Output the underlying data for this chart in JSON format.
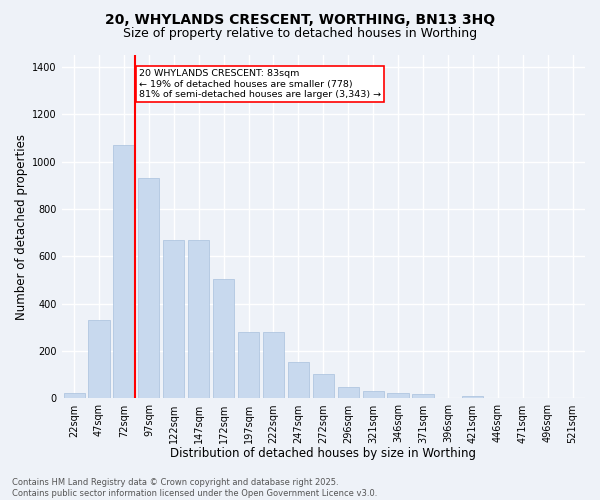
{
  "title_line1": "20, WHYLANDS CRESCENT, WORTHING, BN13 3HQ",
  "title_line2": "Size of property relative to detached houses in Worthing",
  "xlabel": "Distribution of detached houses by size in Worthing",
  "ylabel": "Number of detached properties",
  "bar_color": "#c8d9ee",
  "bar_edge_color": "#a8c0dd",
  "vline_color": "red",
  "vline_x": 2,
  "annotation_text": "20 WHYLANDS CRESCENT: 83sqm\n← 19% of detached houses are smaller (778)\n81% of semi-detached houses are larger (3,343) →",
  "annotation_box_color": "white",
  "annotation_box_edge_color": "red",
  "bin_labels": [
    "22sqm",
    "47sqm",
    "72sqm",
    "97sqm",
    "122sqm",
    "147sqm",
    "172sqm",
    "197sqm",
    "222sqm",
    "247sqm",
    "272sqm",
    "296sqm",
    "321sqm",
    "346sqm",
    "371sqm",
    "396sqm",
    "421sqm",
    "446sqm",
    "471sqm",
    "496sqm",
    "521sqm"
  ],
  "counts": [
    25,
    330,
    1070,
    930,
    670,
    670,
    505,
    280,
    280,
    155,
    105,
    50,
    30,
    25,
    17,
    0,
    10,
    0,
    0,
    0,
    0
  ],
  "ylim": [
    0,
    1450
  ],
  "yticks": [
    0,
    200,
    400,
    600,
    800,
    1000,
    1200,
    1400
  ],
  "background_color": "#eef2f8",
  "grid_color": "white",
  "footer_text": "Contains HM Land Registry data © Crown copyright and database right 2025.\nContains public sector information licensed under the Open Government Licence v3.0.",
  "title_fontsize": 10,
  "subtitle_fontsize": 9,
  "tick_fontsize": 7,
  "xlabel_fontsize": 8.5,
  "ylabel_fontsize": 8.5,
  "footer_fontsize": 6
}
